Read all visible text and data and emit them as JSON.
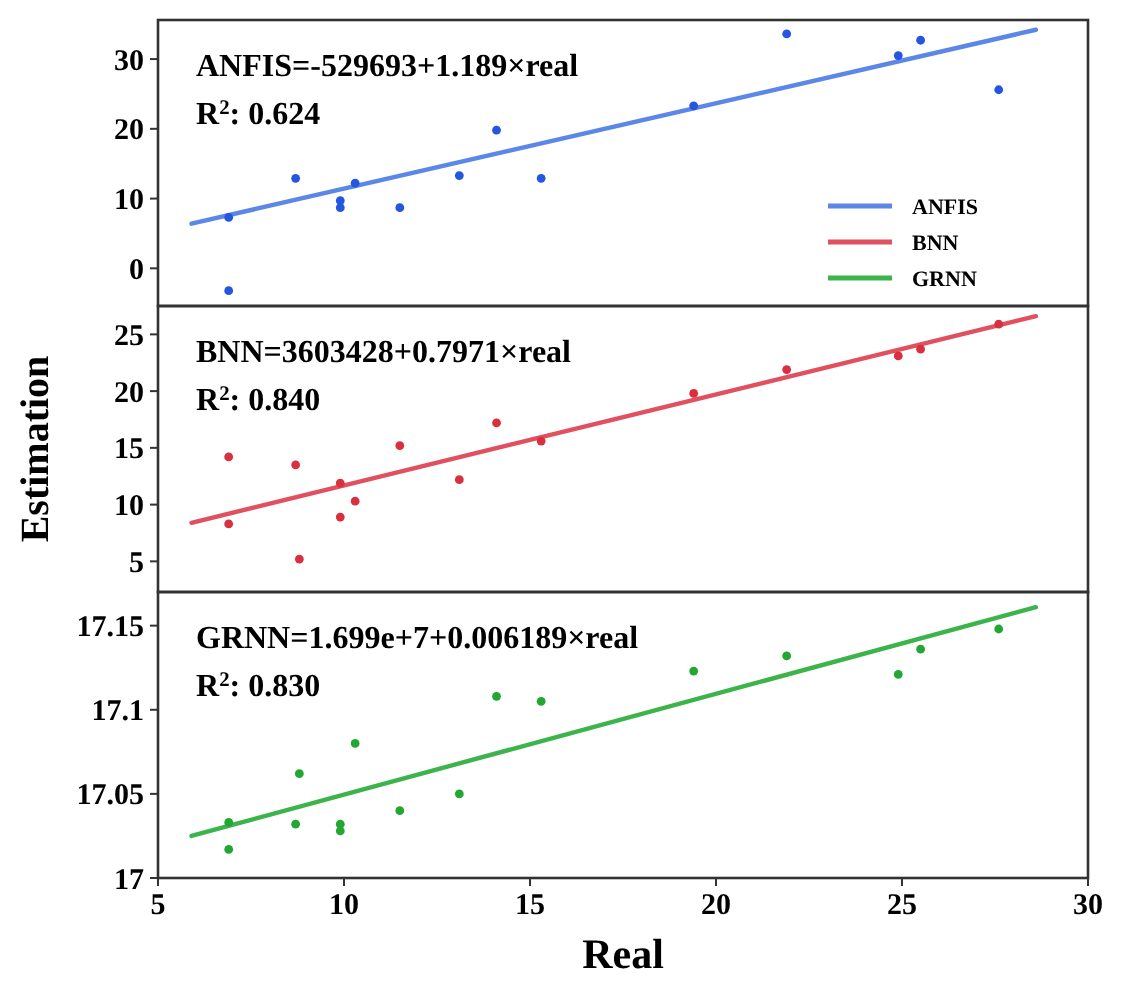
{
  "chart_data": [
    {
      "type": "scatter",
      "xlim": [
        5,
        30
      ],
      "xticks": [
        5,
        10,
        15,
        20,
        25,
        30
      ],
      "ylim": [
        -5.4,
        35.6
      ],
      "yticks": [
        0,
        10,
        20,
        30
      ],
      "tick_labels": "y",
      "legend": "bottom right",
      "annotations": [
        "ANFIS=-529693+1.189×real",
        "R$^{2}$: 0.624"
      ],
      "series": [
        {
          "type": "line",
          "name": "ANFIS",
          "color": "#5b87e6",
          "x": [
            5.9,
            28.6
          ],
          "values": [
            6.4,
            34.2
          ]
        },
        {
          "type": "scatter",
          "color": "#2456e0",
          "x": [
            6.9,
            6.9,
            8.7,
            9.9,
            9.9,
            10.3,
            11.5,
            13.1,
            14.1,
            15.3,
            19.4,
            21.9,
            24.9,
            25.5,
            27.6
          ],
          "values": [
            7.3,
            -3.2,
            12.9,
            9.7,
            8.7,
            12.2,
            8.7,
            13.3,
            19.8,
            12.9,
            23.3,
            33.6,
            30.5,
            32.7,
            25.6
          ]
        }
      ]
    },
    {
      "type": "scatter",
      "xlim": [
        5,
        30
      ],
      "xticks": [
        5,
        10,
        15,
        20,
        25,
        30
      ],
      "ylim": [
        2.3,
        27.5
      ],
      "yticks": [
        5,
        10,
        15,
        20,
        25
      ],
      "tick_labels": "y",
      "ylabel": "Estimation",
      "annotations": [
        "BNN=3603428+0.7971×real",
        "R$^{2}$: 0.840"
      ],
      "series": [
        {
          "type": "line",
          "name": "BNN",
          "color": "#e0505f",
          "x": [
            5.9,
            28.6
          ],
          "values": [
            8.4,
            26.6
          ]
        },
        {
          "type": "scatter",
          "color": "#d9303f",
          "x": [
            6.9,
            6.9,
            8.7,
            8.8,
            9.9,
            9.9,
            10.3,
            11.5,
            13.1,
            14.1,
            15.3,
            19.4,
            21.9,
            24.9,
            25.5,
            27.6
          ],
          "values": [
            14.2,
            8.3,
            13.5,
            5.2,
            11.9,
            8.9,
            10.3,
            15.2,
            12.2,
            17.2,
            15.6,
            19.8,
            21.9,
            23.1,
            23.7,
            25.9
          ]
        }
      ]
    },
    {
      "type": "scatter",
      "xlim": [
        5,
        30
      ],
      "xticks": [
        5,
        10,
        15,
        20,
        25,
        30
      ],
      "ylim": [
        17,
        17.17
      ],
      "yticks": [
        17,
        17.05,
        17.1,
        17.15
      ],
      "xlabel": "Real",
      "annotations": [
        "GRNN=1.699e+7+0.006189×real",
        "R$^{2}$: 0.830"
      ],
      "series": [
        {
          "type": "line",
          "name": "GRNN",
          "color": "#3cb44b",
          "x": [
            5.9,
            28.6
          ],
          "values": [
            17.025,
            17.161
          ]
        },
        {
          "type": "scatter",
          "color": "#22a832",
          "x": [
            6.9,
            6.9,
            8.7,
            8.8,
            9.9,
            9.9,
            10.3,
            11.5,
            13.1,
            14.1,
            15.3,
            19.4,
            21.9,
            24.9,
            25.5,
            27.6
          ],
          "values": [
            17.033,
            17.017,
            17.032,
            17.062,
            17.032,
            17.028,
            17.08,
            17.04,
            17.05,
            17.108,
            17.105,
            17.123,
            17.132,
            17.121,
            17.136,
            17.148
          ]
        }
      ]
    }
  ]
}
